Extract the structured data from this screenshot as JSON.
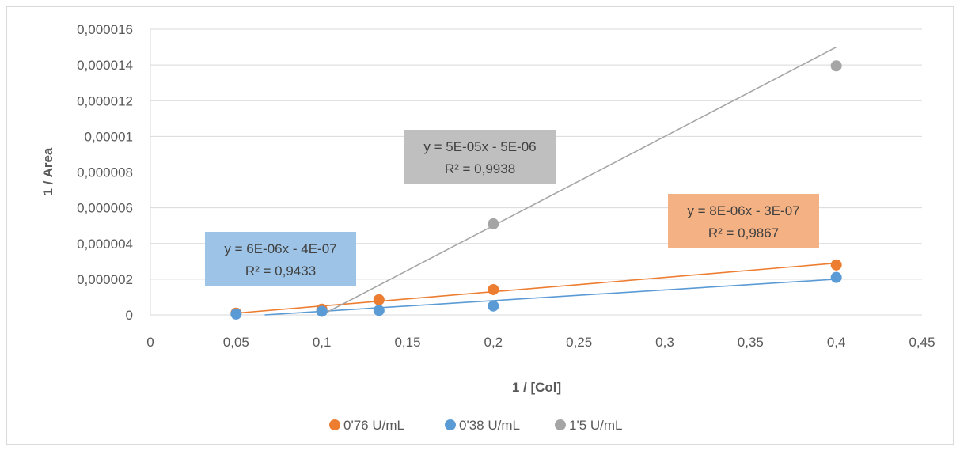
{
  "chart_data": {
    "type": "scatter",
    "xlabel": "1 / [Col]",
    "ylabel": "1 / Area",
    "xlim": [
      0,
      0.45
    ],
    "ylim": [
      0,
      1.6e-05
    ],
    "x_ticks": [
      "0",
      "0,05",
      "0,1",
      "0,15",
      "0,2",
      "0,25",
      "0,3",
      "0,35",
      "0,4",
      "0,45"
    ],
    "y_ticks": [
      "0",
      "0,000002",
      "0,000004",
      "0,000006",
      "0,000008",
      "0,00001",
      "0,000012",
      "0,000014",
      "0,000016"
    ],
    "grid": "horizontal",
    "legend_position": "bottom",
    "series": [
      {
        "name": "0'76 U/mL",
        "color": "#ed7d31",
        "x": [
          0.05,
          0.1,
          0.1333,
          0.2,
          0.4
        ],
        "y": [
          1e-07,
          3.2e-07,
          8.5e-07,
          1.42e-06,
          2.8e-06
        ],
        "trendline": {
          "slope": 8e-06,
          "intercept": -3e-07,
          "label": "y = 8E-06x - 3E-07",
          "r2": "R² = 0,9867",
          "box_color": "#f4b183"
        }
      },
      {
        "name": "0'38 U/mL",
        "color": "#5b9bd5",
        "x": [
          0.05,
          0.1,
          0.1333,
          0.2,
          0.4
        ],
        "y": [
          5e-08,
          2e-07,
          2.5e-07,
          5e-07,
          2.1e-06
        ],
        "trendline": {
          "slope": 6e-06,
          "intercept": -4e-07,
          "label": "y = 6E-06x - 4E-07",
          "r2": "R² = 0,9433",
          "box_color": "#9dc3e6"
        }
      },
      {
        "name": "1'5 U/mL",
        "color": "#a5a5a5",
        "x": [
          0.1,
          0.1333,
          0.2,
          0.4
        ],
        "y": [
          2.5e-07,
          8.5e-07,
          5.1e-06,
          1.395e-05
        ],
        "trendline": {
          "slope": 5e-05,
          "intercept": -5e-06,
          "label": "y = 5E-05x - 5E-06",
          "r2": "R² = 0,9938",
          "box_color": "#bfbfbf"
        }
      }
    ]
  }
}
